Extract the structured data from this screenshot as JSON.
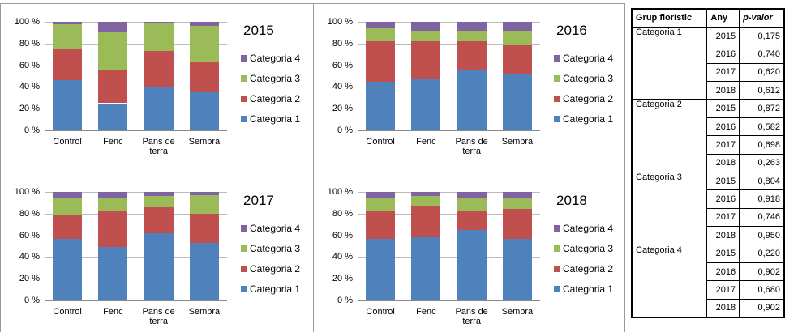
{
  "chart_data": [
    {
      "type": "bar",
      "stacked": true,
      "title": "2015",
      "categories": [
        "Control",
        "Fenc",
        "Pans de terra",
        "Sembra"
      ],
      "series": [
        {
          "name": "Categoria 1",
          "color": "#4f81bd",
          "values": [
            46,
            25,
            40,
            35
          ]
        },
        {
          "name": "Categoria 2",
          "color": "#c0504d",
          "values": [
            29,
            30,
            33,
            28
          ]
        },
        {
          "name": "Categoria 3",
          "color": "#9bbb59",
          "values": [
            23,
            35,
            26,
            33
          ]
        },
        {
          "name": "Categoria 4",
          "color": "#8064a2",
          "values": [
            2,
            10,
            1,
            4
          ]
        }
      ],
      "ylim": [
        0,
        100
      ],
      "yticks": [
        {
          "value": 0,
          "label": "0 %"
        },
        {
          "value": 20,
          "label": "20 %"
        },
        {
          "value": 40,
          "label": "40 %"
        },
        {
          "value": 60,
          "label": "60 %"
        },
        {
          "value": 80,
          "label": "80 %"
        },
        {
          "value": 100,
          "label": "100 %"
        }
      ],
      "grid": true,
      "legend": "right"
    },
    {
      "type": "bar",
      "stacked": true,
      "title": "2016",
      "categories": [
        "Control",
        "Fenc",
        "Pans de terra",
        "Sembra"
      ],
      "series": [
        {
          "name": "Categoria 1",
          "color": "#4f81bd",
          "values": [
            45,
            48,
            55,
            52
          ]
        },
        {
          "name": "Categoria 2",
          "color": "#c0504d",
          "values": [
            37,
            34,
            27,
            27
          ]
        },
        {
          "name": "Categoria 3",
          "color": "#9bbb59",
          "values": [
            12,
            10,
            10,
            13
          ]
        },
        {
          "name": "Categoria 4",
          "color": "#8064a2",
          "values": [
            6,
            8,
            8,
            8
          ]
        }
      ],
      "ylim": [
        0,
        100
      ],
      "yticks": [
        {
          "value": 0,
          "label": "0 %"
        },
        {
          "value": 20,
          "label": "20 %"
        },
        {
          "value": 40,
          "label": "40 %"
        },
        {
          "value": 60,
          "label": "60 %"
        },
        {
          "value": 80,
          "label": "80 %"
        },
        {
          "value": 100,
          "label": "100 %"
        }
      ],
      "grid": true,
      "legend": "right"
    },
    {
      "type": "bar",
      "stacked": true,
      "title": "2017",
      "categories": [
        "Control",
        "Fenc",
        "Pans de terra",
        "Sembra"
      ],
      "series": [
        {
          "name": "Categoria 1",
          "color": "#4f81bd",
          "values": [
            57,
            49,
            62,
            53
          ]
        },
        {
          "name": "Categoria 2",
          "color": "#c0504d",
          "values": [
            22,
            33,
            24,
            27
          ]
        },
        {
          "name": "Categoria 3",
          "color": "#9bbb59",
          "values": [
            16,
            12,
            10,
            17
          ]
        },
        {
          "name": "Categoria 4",
          "color": "#8064a2",
          "values": [
            5,
            6,
            4,
            3
          ]
        }
      ],
      "ylim": [
        0,
        100
      ],
      "yticks": [
        {
          "value": 0,
          "label": "0 %"
        },
        {
          "value": 20,
          "label": "20 %"
        },
        {
          "value": 40,
          "label": "40 %"
        },
        {
          "value": 60,
          "label": "60 %"
        },
        {
          "value": 80,
          "label": "80 %"
        },
        {
          "value": 100,
          "label": "100 %"
        }
      ],
      "grid": true,
      "legend": "right"
    },
    {
      "type": "bar",
      "stacked": true,
      "title": "2018",
      "categories": [
        "Control",
        "Fenc",
        "Pans de terra",
        "Sembra"
      ],
      "series": [
        {
          "name": "Categoria 1",
          "color": "#4f81bd",
          "values": [
            57,
            58,
            65,
            57
          ]
        },
        {
          "name": "Categoria 2",
          "color": "#c0504d",
          "values": [
            25,
            29,
            18,
            27
          ]
        },
        {
          "name": "Categoria 3",
          "color": "#9bbb59",
          "values": [
            13,
            9,
            12,
            11
          ]
        },
        {
          "name": "Categoria 4",
          "color": "#8064a2",
          "values": [
            5,
            4,
            5,
            5
          ]
        }
      ],
      "ylim": [
        0,
        100
      ],
      "yticks": [
        {
          "value": 0,
          "label": "0 %"
        },
        {
          "value": 20,
          "label": "20 %"
        },
        {
          "value": 40,
          "label": "40 %"
        },
        {
          "value": 60,
          "label": "60 %"
        },
        {
          "value": 80,
          "label": "80 %"
        },
        {
          "value": 100,
          "label": "100 %"
        }
      ],
      "grid": true,
      "legend": "right"
    }
  ],
  "table": {
    "header": [
      "Grup florístic",
      "Any",
      "p-valor"
    ],
    "groups": [
      {
        "group": "Categoria 1",
        "rows": [
          [
            "2015",
            "0,175"
          ],
          [
            "2016",
            "0,740"
          ],
          [
            "2017",
            "0,620"
          ],
          [
            "2018",
            "0,612"
          ]
        ]
      },
      {
        "group": "Categoria 2",
        "rows": [
          [
            "2015",
            "0,872"
          ],
          [
            "2016",
            "0,582"
          ],
          [
            "2017",
            "0,698"
          ],
          [
            "2018",
            "0,263"
          ]
        ]
      },
      {
        "group": "Categoria 3",
        "rows": [
          [
            "2015",
            "0,804"
          ],
          [
            "2016",
            "0,918"
          ],
          [
            "2017",
            "0,746"
          ],
          [
            "2018",
            "0,950"
          ]
        ]
      },
      {
        "group": "Categoria 4",
        "rows": [
          [
            "2015",
            "0,220"
          ],
          [
            "2016",
            "0,902"
          ],
          [
            "2017",
            "0,680"
          ],
          [
            "2018",
            "0,902"
          ]
        ]
      }
    ]
  }
}
